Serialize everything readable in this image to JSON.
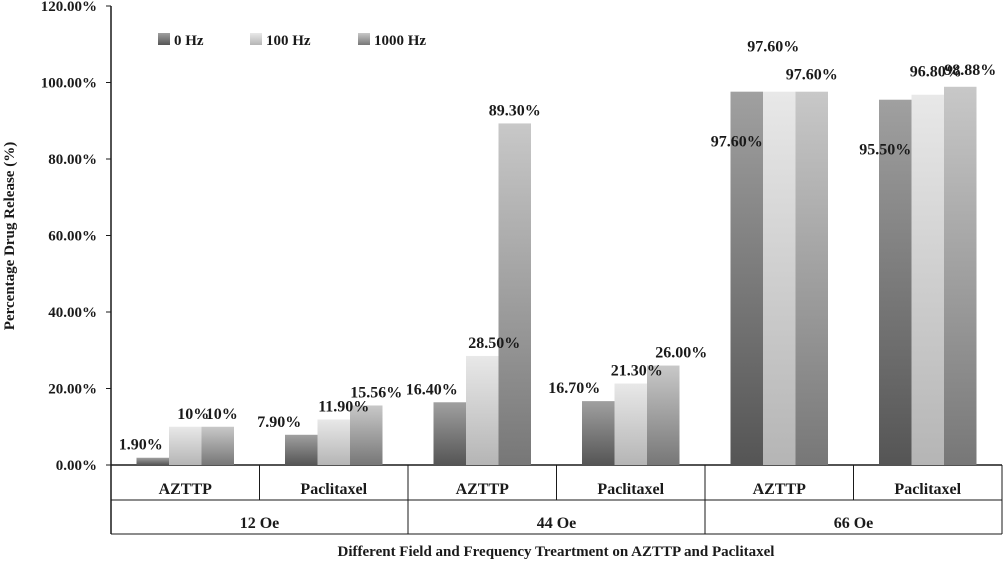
{
  "chart_data": {
    "type": "bar",
    "title": "",
    "ylabel": "Percentage Drug Release (%)",
    "xlabel": "Different Field and Frequency Treartment on AZTTP and Paclitaxel",
    "ylim": [
      0,
      120
    ],
    "yticks": [
      "0.00%",
      "20.00%",
      "40.00%",
      "60.00%",
      "80.00%",
      "100.00%",
      "120.00%"
    ],
    "groups": [
      "12 Oe",
      "44 Oe",
      "66 Oe"
    ],
    "categories": [
      "AZTTP",
      "Paclitaxel",
      "AZTTP",
      "Paclitaxel",
      "AZTTP",
      "Paclitaxel"
    ],
    "legend_position": "top-left",
    "series": [
      {
        "name": "0 Hz",
        "color_dark": "#5a5a5a",
        "color_light": "#9a9a9a",
        "values": [
          1.9,
          7.9,
          16.4,
          16.7,
          97.6,
          95.5
        ],
        "labels": [
          "1.90%",
          "7.90%",
          "16.40%",
          "16.70%",
          "97.60%",
          "95.50%"
        ]
      },
      {
        "name": "100 Hz",
        "color_dark": "#b8b8b8",
        "color_light": "#e6e6e6",
        "values": [
          10,
          11.9,
          28.5,
          21.3,
          97.6,
          96.8
        ],
        "labels": [
          "10%",
          "11.90%",
          "28.50%",
          "21.30%",
          "97.60%",
          "96.80%"
        ]
      },
      {
        "name": "1000 Hz",
        "color_dark": "#7a7a7a",
        "color_light": "#c4c4c4",
        "values": [
          10,
          15.56,
          89.3,
          26.0,
          97.6,
          98.88
        ],
        "labels": [
          "10%",
          "15.56%",
          "89.30%",
          "26.00%",
          "97.60%",
          "98.88%"
        ]
      }
    ]
  }
}
